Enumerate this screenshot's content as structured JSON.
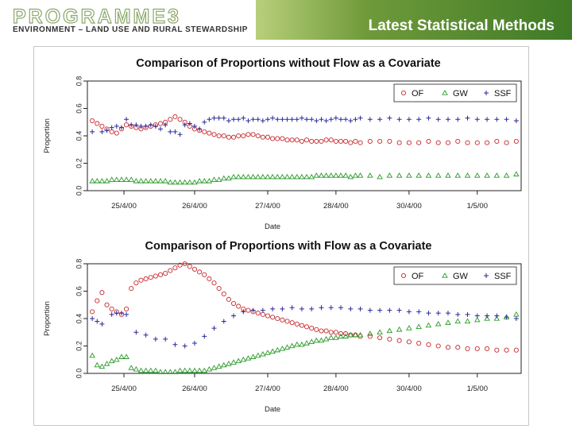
{
  "header": {
    "logo_main": "PROGRAMME3",
    "logo_sub": "ENVIRONMENT – LAND USE AND RURAL STEWARDSHIP",
    "slide_title": "Latest Statistical Methods"
  },
  "colors": {
    "OF": "#c8282c",
    "GW": "#2a9a2a",
    "SSF": "#2a2a9a",
    "banner": "#4f8a2e"
  },
  "chart_data": [
    {
      "type": "scatter",
      "title": "Comparison of Proportions without Flow as a Covariate",
      "xlabel": "Date",
      "ylabel": "Proportion",
      "ylim": [
        0,
        0.8
      ],
      "yticks": [
        "0.0",
        "0.2",
        "0.4",
        "0.6",
        "0.8"
      ],
      "xticks": [
        "25/4/00",
        "26/4/00",
        "27/4/00",
        "28/4/00",
        "30/4/00",
        "1/5/00"
      ],
      "legend_position": "top-right",
      "legend": [
        "OF",
        "GW",
        "SSF"
      ],
      "series": [
        {
          "name": "OF",
          "marker": "circle",
          "x": [
            1,
            2,
            3,
            4,
            5,
            6,
            7,
            8,
            9,
            10,
            11,
            12,
            13,
            14,
            15,
            16,
            17,
            18,
            19,
            20,
            21,
            22,
            23,
            24,
            25,
            26,
            27,
            28,
            29,
            30,
            31,
            32,
            33,
            34,
            35,
            36,
            37,
            38,
            39,
            40,
            41,
            42,
            43,
            44,
            45,
            46,
            47,
            48,
            49,
            50,
            51,
            52,
            53,
            54,
            55,
            56,
            58,
            60,
            62,
            64,
            66,
            68,
            70,
            72,
            74,
            76,
            78,
            80,
            82,
            84,
            86,
            88
          ],
          "y": [
            0.51,
            0.49,
            0.47,
            0.45,
            0.43,
            0.42,
            0.45,
            0.48,
            0.47,
            0.46,
            0.45,
            0.46,
            0.47,
            0.48,
            0.49,
            0.5,
            0.52,
            0.54,
            0.52,
            0.5,
            0.47,
            0.45,
            0.44,
            0.43,
            0.42,
            0.41,
            0.4,
            0.4,
            0.39,
            0.39,
            0.4,
            0.4,
            0.41,
            0.41,
            0.4,
            0.39,
            0.39,
            0.38,
            0.38,
            0.38,
            0.37,
            0.37,
            0.37,
            0.36,
            0.37,
            0.36,
            0.36,
            0.36,
            0.37,
            0.37,
            0.36,
            0.36,
            0.36,
            0.35,
            0.36,
            0.35,
            0.36,
            0.36,
            0.36,
            0.35,
            0.35,
            0.35,
            0.36,
            0.35,
            0.35,
            0.36,
            0.35,
            0.35,
            0.35,
            0.36,
            0.35,
            0.36
          ]
        },
        {
          "name": "GW",
          "marker": "triangle",
          "x": [
            1,
            2,
            3,
            4,
            5,
            6,
            7,
            8,
            9,
            10,
            11,
            12,
            13,
            14,
            15,
            16,
            17,
            18,
            19,
            20,
            21,
            22,
            23,
            24,
            25,
            26,
            27,
            28,
            29,
            30,
            31,
            32,
            33,
            34,
            35,
            36,
            37,
            38,
            39,
            40,
            41,
            42,
            43,
            44,
            45,
            46,
            47,
            48,
            49,
            50,
            51,
            52,
            53,
            54,
            55,
            56,
            58,
            60,
            62,
            64,
            66,
            68,
            70,
            72,
            74,
            76,
            78,
            80,
            82,
            84,
            86,
            88
          ],
          "y": [
            0.07,
            0.07,
            0.07,
            0.07,
            0.08,
            0.08,
            0.08,
            0.08,
            0.08,
            0.07,
            0.07,
            0.07,
            0.07,
            0.07,
            0.07,
            0.07,
            0.06,
            0.06,
            0.06,
            0.06,
            0.06,
            0.06,
            0.07,
            0.07,
            0.07,
            0.08,
            0.08,
            0.09,
            0.09,
            0.1,
            0.1,
            0.1,
            0.1,
            0.1,
            0.1,
            0.1,
            0.1,
            0.1,
            0.1,
            0.1,
            0.1,
            0.1,
            0.1,
            0.1,
            0.1,
            0.1,
            0.11,
            0.11,
            0.11,
            0.11,
            0.11,
            0.11,
            0.11,
            0.1,
            0.11,
            0.11,
            0.11,
            0.1,
            0.11,
            0.11,
            0.11,
            0.11,
            0.11,
            0.11,
            0.11,
            0.11,
            0.11,
            0.11,
            0.11,
            0.11,
            0.11,
            0.12
          ]
        },
        {
          "name": "SSF",
          "marker": "plus",
          "x": [
            1,
            3,
            4,
            5,
            6,
            7,
            8,
            9,
            10,
            11,
            12,
            13,
            14,
            15,
            16,
            17,
            18,
            19,
            20,
            21,
            22,
            23,
            24,
            25,
            26,
            27,
            28,
            29,
            30,
            31,
            32,
            33,
            34,
            35,
            36,
            37,
            38,
            39,
            40,
            41,
            42,
            43,
            44,
            45,
            46,
            47,
            48,
            49,
            50,
            51,
            52,
            53,
            54,
            55,
            56,
            58,
            60,
            62,
            64,
            66,
            68,
            70,
            72,
            74,
            76,
            78,
            80,
            82,
            84,
            86,
            88
          ],
          "y": [
            0.43,
            0.43,
            0.44,
            0.46,
            0.47,
            0.46,
            0.52,
            0.48,
            0.48,
            0.47,
            0.47,
            0.48,
            0.47,
            0.45,
            0.48,
            0.43,
            0.43,
            0.41,
            0.48,
            0.49,
            0.47,
            0.45,
            0.5,
            0.52,
            0.53,
            0.53,
            0.53,
            0.51,
            0.52,
            0.52,
            0.53,
            0.51,
            0.52,
            0.52,
            0.51,
            0.52,
            0.53,
            0.52,
            0.52,
            0.52,
            0.52,
            0.52,
            0.53,
            0.52,
            0.52,
            0.51,
            0.52,
            0.51,
            0.52,
            0.53,
            0.52,
            0.52,
            0.51,
            0.52,
            0.53,
            0.52,
            0.52,
            0.53,
            0.52,
            0.52,
            0.52,
            0.53,
            0.52,
            0.52,
            0.52,
            0.53,
            0.52,
            0.52,
            0.52,
            0.52,
            0.51
          ]
        }
      ]
    },
    {
      "type": "scatter",
      "title": "Comparison of Proportions with Flow as a Covariate",
      "xlabel": "Date",
      "ylabel": "Proportion",
      "ylim": [
        0,
        0.8
      ],
      "yticks": [
        "0.0",
        "0.2",
        "0.4",
        "0.6",
        "0.8"
      ],
      "xticks": [
        "25/4/00",
        "26/4/00",
        "27/4/00",
        "28/4/00",
        "30/4/00",
        "1/5/00"
      ],
      "legend_position": "top-right",
      "legend": [
        "OF",
        "GW",
        "SSF"
      ],
      "series": [
        {
          "name": "OF",
          "marker": "circle",
          "x": [
            1,
            2,
            3,
            4,
            5,
            6,
            7,
            8,
            9,
            10,
            11,
            12,
            13,
            14,
            15,
            16,
            17,
            18,
            19,
            20,
            21,
            22,
            23,
            24,
            25,
            26,
            27,
            28,
            29,
            30,
            31,
            32,
            33,
            34,
            35,
            36,
            37,
            38,
            39,
            40,
            41,
            42,
            43,
            44,
            45,
            46,
            47,
            48,
            49,
            50,
            51,
            52,
            53,
            54,
            55,
            56,
            58,
            60,
            62,
            64,
            66,
            68,
            70,
            72,
            74,
            76,
            78,
            80,
            82,
            84,
            86,
            88
          ],
          "y": [
            0.45,
            0.53,
            0.59,
            0.5,
            0.47,
            0.45,
            0.43,
            0.47,
            0.62,
            0.66,
            0.68,
            0.69,
            0.7,
            0.71,
            0.72,
            0.73,
            0.75,
            0.77,
            0.79,
            0.8,
            0.78,
            0.76,
            0.74,
            0.72,
            0.69,
            0.66,
            0.62,
            0.58,
            0.54,
            0.51,
            0.49,
            0.47,
            0.46,
            0.45,
            0.44,
            0.43,
            0.42,
            0.41,
            0.4,
            0.39,
            0.38,
            0.37,
            0.36,
            0.35,
            0.34,
            0.33,
            0.32,
            0.31,
            0.31,
            0.3,
            0.3,
            0.29,
            0.29,
            0.28,
            0.28,
            0.27,
            0.27,
            0.26,
            0.25,
            0.24,
            0.23,
            0.22,
            0.21,
            0.2,
            0.19,
            0.19,
            0.18,
            0.18,
            0.18,
            0.17,
            0.17,
            0.17
          ]
        },
        {
          "name": "GW",
          "marker": "triangle",
          "x": [
            1,
            2,
            3,
            4,
            5,
            6,
            7,
            8,
            9,
            10,
            11,
            12,
            13,
            14,
            15,
            16,
            17,
            18,
            19,
            20,
            21,
            22,
            23,
            24,
            25,
            26,
            27,
            28,
            29,
            30,
            31,
            32,
            33,
            34,
            35,
            36,
            37,
            38,
            39,
            40,
            41,
            42,
            43,
            44,
            45,
            46,
            47,
            48,
            49,
            50,
            51,
            52,
            53,
            54,
            55,
            56,
            58,
            60,
            62,
            64,
            66,
            68,
            70,
            72,
            74,
            76,
            78,
            80,
            82,
            84,
            86,
            88
          ],
          "y": [
            0.13,
            0.06,
            0.05,
            0.07,
            0.09,
            0.1,
            0.12,
            0.12,
            0.04,
            0.03,
            0.02,
            0.02,
            0.02,
            0.02,
            0.01,
            0.01,
            0.01,
            0.01,
            0.02,
            0.02,
            0.02,
            0.02,
            0.02,
            0.02,
            0.03,
            0.04,
            0.05,
            0.06,
            0.07,
            0.08,
            0.09,
            0.1,
            0.11,
            0.12,
            0.13,
            0.14,
            0.15,
            0.16,
            0.17,
            0.18,
            0.19,
            0.2,
            0.21,
            0.21,
            0.22,
            0.23,
            0.24,
            0.24,
            0.25,
            0.26,
            0.26,
            0.27,
            0.27,
            0.28,
            0.28,
            0.28,
            0.29,
            0.3,
            0.31,
            0.32,
            0.33,
            0.34,
            0.35,
            0.36,
            0.37,
            0.38,
            0.38,
            0.39,
            0.4,
            0.4,
            0.41,
            0.43
          ]
        },
        {
          "name": "SSF",
          "marker": "plus",
          "x": [
            1,
            2,
            3,
            5,
            6,
            7,
            8,
            10,
            12,
            14,
            16,
            18,
            20,
            22,
            24,
            26,
            28,
            30,
            32,
            34,
            36,
            38,
            40,
            42,
            44,
            46,
            48,
            50,
            52,
            54,
            56,
            58,
            60,
            62,
            64,
            66,
            68,
            70,
            72,
            74,
            76,
            78,
            80,
            82,
            84,
            86,
            88
          ],
          "y": [
            0.4,
            0.38,
            0.36,
            0.43,
            0.44,
            0.44,
            0.43,
            0.3,
            0.28,
            0.25,
            0.25,
            0.21,
            0.2,
            0.22,
            0.27,
            0.33,
            0.38,
            0.42,
            0.45,
            0.46,
            0.46,
            0.47,
            0.47,
            0.48,
            0.47,
            0.47,
            0.48,
            0.48,
            0.48,
            0.47,
            0.47,
            0.46,
            0.46,
            0.46,
            0.46,
            0.45,
            0.45,
            0.44,
            0.44,
            0.44,
            0.43,
            0.43,
            0.42,
            0.42,
            0.42,
            0.41,
            0.4
          ]
        }
      ]
    }
  ]
}
